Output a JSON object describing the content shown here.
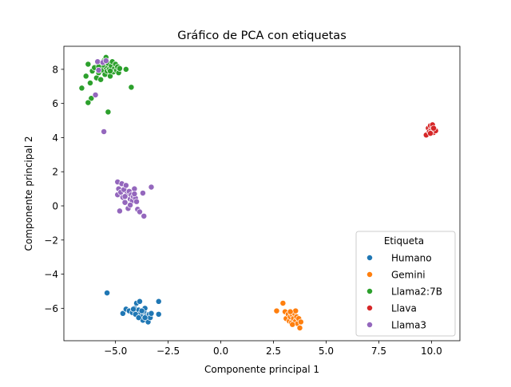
{
  "chart_data": {
    "type": "scatter",
    "title": "Gráfico de PCA con etiquetas",
    "xlabel": "Componente principal 1",
    "ylabel": "Componente principal 2",
    "xlim": [
      -7.45,
      11.35
    ],
    "ylim": [
      -7.9,
      9.35
    ],
    "xticks": [
      -5,
      -2.5,
      0,
      2.5,
      5,
      7.5,
      10
    ],
    "xtick_labels": [
      "−5.0",
      "−2.5",
      "0.0",
      "2.5",
      "5.0",
      "7.5",
      "10.0"
    ],
    "yticks": [
      -6,
      -4,
      -2,
      0,
      2,
      4,
      6,
      8
    ],
    "ytick_labels": [
      "−6",
      "−4",
      "−2",
      "0",
      "2",
      "4",
      "6",
      "8"
    ],
    "grid": false,
    "legend": {
      "title": "Etiqueta",
      "placement": "lower-right"
    },
    "series": [
      {
        "name": "Humano",
        "color": "#1f77b4",
        "points": [
          [
            -5.4,
            -5.1
          ],
          [
            -4.65,
            -6.3
          ],
          [
            -4.5,
            -6.05
          ],
          [
            -4.35,
            -6.15
          ],
          [
            -4.2,
            -6.25
          ],
          [
            -4.1,
            -6.0
          ],
          [
            -4.0,
            -5.7
          ],
          [
            -3.95,
            -6.4
          ],
          [
            -3.9,
            -6.1
          ],
          [
            -3.85,
            -5.6
          ],
          [
            -3.8,
            -6.3
          ],
          [
            -3.75,
            -6.5
          ],
          [
            -3.7,
            -6.7
          ],
          [
            -3.65,
            -6.2
          ],
          [
            -3.6,
            -6.0
          ],
          [
            -3.55,
            -6.45
          ],
          [
            -3.5,
            -6.6
          ],
          [
            -3.45,
            -6.8
          ],
          [
            -3.4,
            -6.35
          ],
          [
            -3.35,
            -6.55
          ],
          [
            -3.3,
            -6.3
          ],
          [
            -4.05,
            -6.35
          ],
          [
            -3.9,
            -6.55
          ],
          [
            -3.75,
            -6.15
          ],
          [
            -4.15,
            -6.05
          ],
          [
            -3.6,
            -6.55
          ],
          [
            -2.95,
            -5.6
          ],
          [
            -2.95,
            -6.35
          ]
        ]
      },
      {
        "name": "Gemini",
        "color": "#ff7f0e",
        "points": [
          [
            2.65,
            -6.15
          ],
          [
            2.95,
            -5.7
          ],
          [
            3.05,
            -6.2
          ],
          [
            3.1,
            -6.6
          ],
          [
            3.2,
            -6.35
          ],
          [
            3.25,
            -6.75
          ],
          [
            3.3,
            -6.5
          ],
          [
            3.35,
            -6.85
          ],
          [
            3.4,
            -6.4
          ],
          [
            3.45,
            -6.6
          ],
          [
            3.5,
            -6.3
          ],
          [
            3.55,
            -6.75
          ],
          [
            3.6,
            -6.5
          ],
          [
            3.65,
            -6.9
          ],
          [
            3.7,
            -6.6
          ],
          [
            3.75,
            -7.15
          ],
          [
            3.8,
            -6.8
          ],
          [
            3.4,
            -6.95
          ],
          [
            3.55,
            -6.15
          ],
          [
            3.3,
            -6.2
          ]
        ]
      },
      {
        "name": "Llama2:7B",
        "color": "#2ca02c",
        "points": [
          [
            -6.6,
            6.9
          ],
          [
            -6.4,
            7.6
          ],
          [
            -6.3,
            8.3
          ],
          [
            -6.2,
            7.2
          ],
          [
            -6.15,
            6.3
          ],
          [
            -6.1,
            7.9
          ],
          [
            -6.0,
            8.1
          ],
          [
            -5.9,
            7.5
          ],
          [
            -5.85,
            8.4
          ],
          [
            -5.8,
            7.8
          ],
          [
            -5.75,
            8.0
          ],
          [
            -5.7,
            7.4
          ],
          [
            -5.65,
            8.25
          ],
          [
            -5.6,
            7.95
          ],
          [
            -5.55,
            8.5
          ],
          [
            -5.5,
            7.7
          ],
          [
            -5.45,
            8.1
          ],
          [
            -5.4,
            7.9
          ],
          [
            -5.35,
            8.35
          ],
          [
            -5.3,
            8.0
          ],
          [
            -5.25,
            7.6
          ],
          [
            -5.2,
            8.2
          ],
          [
            -5.15,
            8.45
          ],
          [
            -5.1,
            7.85
          ],
          [
            -5.05,
            8.05
          ],
          [
            -5.0,
            8.3
          ],
          [
            -4.95,
            7.95
          ],
          [
            -4.9,
            8.15
          ],
          [
            -4.85,
            7.8
          ],
          [
            -4.8,
            8.05
          ],
          [
            -5.45,
            8.7
          ],
          [
            -4.5,
            8.0
          ],
          [
            -4.25,
            6.95
          ],
          [
            -6.3,
            6.05
          ],
          [
            -5.35,
            5.5
          ],
          [
            -5.6,
            8.25
          ],
          [
            -5.8,
            8.15
          ],
          [
            -5.25,
            7.9
          ]
        ]
      },
      {
        "name": "Llava",
        "color": "#d62728",
        "points": [
          [
            9.75,
            4.15
          ],
          [
            9.85,
            4.55
          ],
          [
            9.9,
            4.35
          ],
          [
            9.95,
            4.7
          ],
          [
            10.0,
            4.45
          ],
          [
            10.05,
            4.6
          ],
          [
            10.1,
            4.3
          ],
          [
            10.15,
            4.5
          ],
          [
            10.2,
            4.4
          ],
          [
            9.95,
            4.25
          ],
          [
            10.05,
            4.75
          ],
          [
            10.1,
            4.55
          ]
        ]
      },
      {
        "name": "Llama3",
        "color": "#9467bd",
        "points": [
          [
            -5.95,
            6.5
          ],
          [
            -5.85,
            8.45
          ],
          [
            -5.8,
            7.95
          ],
          [
            -5.6,
            8.4
          ],
          [
            -5.45,
            8.5
          ],
          [
            -5.55,
            4.35
          ],
          [
            -4.9,
            1.4
          ],
          [
            -4.9,
            0.65
          ],
          [
            -4.85,
            1.0
          ],
          [
            -4.8,
            -0.3
          ],
          [
            -4.75,
            0.8
          ],
          [
            -4.7,
            1.3
          ],
          [
            -4.65,
            0.5
          ],
          [
            -4.6,
            0.95
          ],
          [
            -4.55,
            0.2
          ],
          [
            -4.5,
            1.2
          ],
          [
            -4.45,
            0.7
          ],
          [
            -4.4,
            -0.15
          ],
          [
            -4.35,
            0.85
          ],
          [
            -4.3,
            0.4
          ],
          [
            -4.25,
            0.65
          ],
          [
            -4.2,
            0.3
          ],
          [
            -4.15,
            0.55
          ],
          [
            -4.1,
            1.0
          ],
          [
            -4.05,
            0.45
          ],
          [
            -4.0,
            0.25
          ],
          [
            -3.95,
            -0.2
          ],
          [
            -3.85,
            -0.35
          ],
          [
            -3.7,
            0.75
          ],
          [
            -3.65,
            -0.6
          ],
          [
            -3.3,
            1.1
          ],
          [
            -4.3,
            0.05
          ],
          [
            -4.55,
            0.55
          ],
          [
            -4.1,
            0.7
          ]
        ]
      }
    ]
  }
}
